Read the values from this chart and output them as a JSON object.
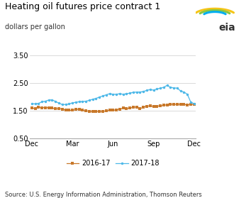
{
  "title": "Heating oil futures price contract 1",
  "subtitle": "dollars per gallon",
  "source": "Source: U.S. Energy Information Administration, Thomson Reuters",
  "xlabels": [
    "Dec",
    "Mar",
    "Jun",
    "Sep",
    "Dec"
  ],
  "xtick_positions": [
    0,
    12,
    24,
    36,
    48
  ],
  "ylim": [
    0.5,
    3.5
  ],
  "yticks": [
    0.5,
    1.5,
    2.5,
    3.5
  ],
  "ytick_labels": [
    "0.50",
    "1.50",
    "2.50",
    "3.50"
  ],
  "color_2016": "#c8782a",
  "color_2017": "#4db8e8",
  "legend_label_2016": "2016-17",
  "legend_label_2017": "2017-18",
  "series_2016": [
    1.61,
    1.58,
    1.63,
    1.62,
    1.62,
    1.62,
    1.6,
    1.58,
    1.58,
    1.57,
    1.52,
    1.52,
    1.52,
    1.55,
    1.56,
    1.52,
    1.5,
    1.49,
    1.47,
    1.48,
    1.48,
    1.48,
    1.5,
    1.52,
    1.52,
    1.54,
    1.56,
    1.6,
    1.58,
    1.6,
    1.63,
    1.64,
    1.58,
    1.63,
    1.67,
    1.68,
    1.66,
    1.67,
    1.68,
    1.7,
    1.72,
    1.74,
    1.73,
    1.74,
    1.73,
    1.73,
    1.72,
    1.73,
    1.74
  ],
  "series_2017": [
    1.76,
    1.75,
    1.77,
    1.83,
    1.85,
    1.89,
    1.9,
    1.84,
    1.78,
    1.73,
    1.73,
    1.75,
    1.79,
    1.81,
    1.83,
    1.84,
    1.85,
    1.88,
    1.92,
    1.95,
    2.0,
    2.04,
    2.08,
    2.12,
    2.1,
    2.1,
    2.12,
    2.1,
    2.12,
    2.14,
    2.17,
    2.18,
    2.18,
    2.2,
    2.24,
    2.27,
    2.25,
    2.29,
    2.32,
    2.35,
    2.42,
    2.35,
    2.33,
    2.32,
    2.22,
    2.18,
    2.1,
    1.82,
    1.76
  ],
  "bg_color": "#ffffff",
  "grid_color": "#cccccc",
  "title_fontsize": 9,
  "subtitle_fontsize": 7,
  "source_fontsize": 6,
  "tick_fontsize": 7,
  "legend_fontsize": 7
}
